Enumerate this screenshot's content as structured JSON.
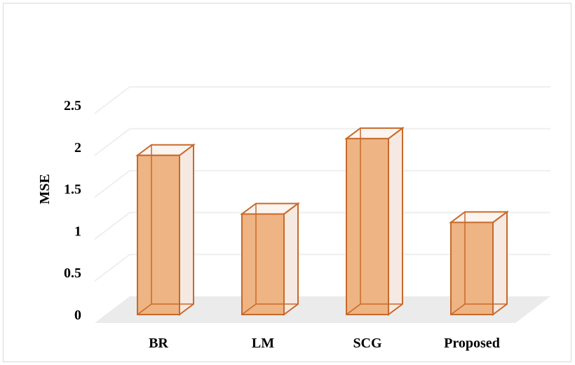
{
  "chart_data": {
    "type": "bar",
    "title": "",
    "xlabel": "",
    "ylabel": "MSE",
    "categories": [
      "BR",
      "LM",
      "SCG",
      "Proposed"
    ],
    "values": [
      1.9,
      1.2,
      2.1,
      1.1
    ],
    "ylim": [
      0,
      2.5
    ],
    "yticks": [
      "0",
      "0.5",
      "1",
      "1.5",
      "2",
      "2.5"
    ],
    "grid": true,
    "three_d": true,
    "colors": {
      "bar_front": "#eeb483",
      "bar_edge": "#c8692a",
      "bar_side": "#f6e9e2",
      "floor": "#ebebeb",
      "grid": "#efefef"
    }
  }
}
